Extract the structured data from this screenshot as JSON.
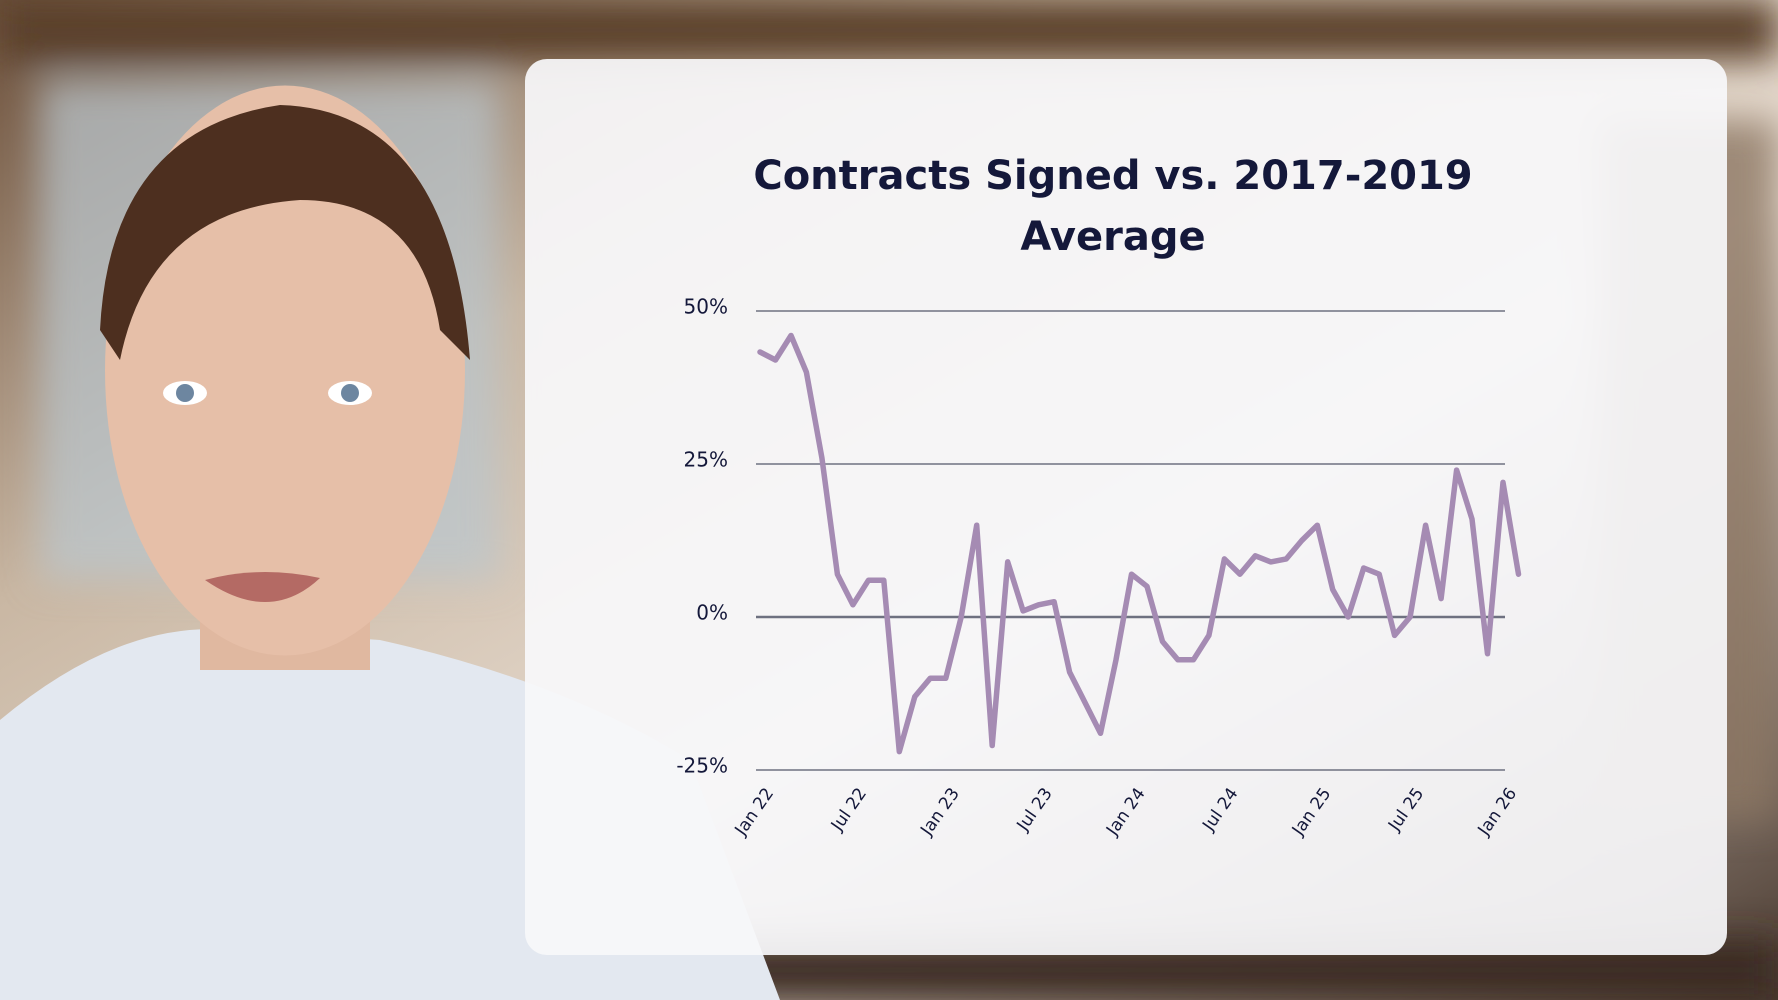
{
  "chart_data": {
    "type": "line",
    "title": "Contracts Signed vs. 2017-2019 Average",
    "categories": [
      "Jan 22",
      null,
      null,
      null,
      null,
      null,
      "Jul 22",
      null,
      null,
      null,
      null,
      null,
      "Jan 23",
      null,
      null,
      null,
      null,
      null,
      "Jul 23",
      null,
      null,
      null,
      null,
      null,
      "Jan 24",
      null,
      null,
      null,
      null,
      null,
      "Jul 24",
      null,
      null,
      null,
      null,
      null,
      "Jan 25",
      null,
      null,
      null,
      null,
      null,
      "Jul 25",
      null,
      null,
      null,
      null,
      null,
      "Jan 26",
      null
    ],
    "series": [
      {
        "color": "#a58bb3",
        "values": [
          43.3,
          42,
          46,
          40,
          26,
          7,
          2,
          6,
          6,
          -22,
          -13,
          -10,
          -10,
          0,
          15,
          -21,
          9,
          1,
          2,
          2.5,
          -9,
          -14,
          -19,
          -7,
          7,
          5,
          -4,
          -7,
          -7,
          -3,
          9.5,
          7,
          10,
          9,
          9.5,
          12.5,
          15,
          4.5,
          0,
          8,
          7,
          -3,
          0,
          15,
          3,
          24,
          16,
          -6,
          22,
          7
        ]
      }
    ],
    "ylim": [
      -25,
      50
    ],
    "yticks": [
      {
        "value": -25,
        "label": "-25%"
      },
      {
        "value": 0,
        "label": "0%"
      },
      {
        "value": 25,
        "label": "25%"
      },
      {
        "value": 50,
        "label": "50%"
      }
    ],
    "grid": true
  }
}
